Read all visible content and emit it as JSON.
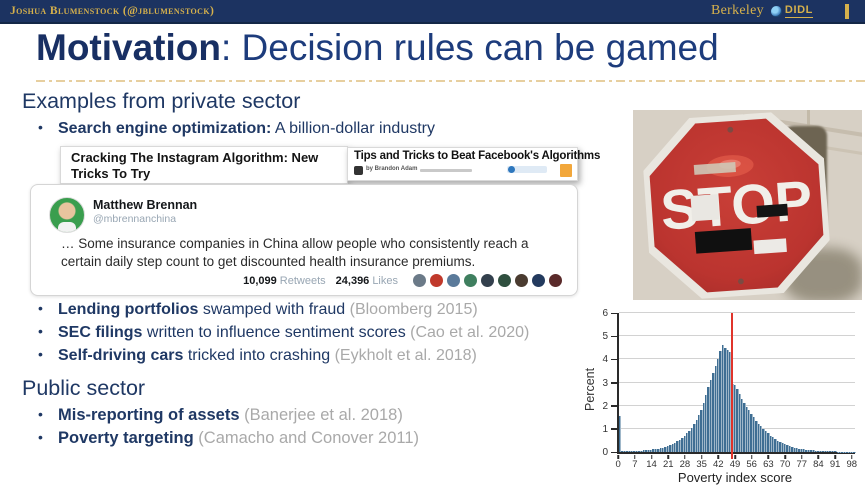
{
  "header": {
    "author": "Joshua Blumenstock (@jblumenstock)",
    "brand_berkeley": "Berkeley",
    "brand_didl": "DIDL",
    "globe_icon": "globe",
    "colors": {
      "bar_bg": "#1c3361",
      "gold": "#d6b14c"
    }
  },
  "title": {
    "bold": "Motivation",
    "rest": ": Decision rules can be gamed"
  },
  "private_sector": {
    "heading": "Examples from private sector",
    "seo_bold": "Search engine optimization:",
    "seo_rest": " A billion-dollar industry",
    "bullets": [
      {
        "bold": "Lending portfolios",
        "text": " swamped with fraud ",
        "cite": "(Bloomberg 2015)"
      },
      {
        "bold": "SEC filings",
        "text": " written to influence sentiment scores ",
        "cite": "(Cao et al. 2020)"
      },
      {
        "bold": "Self-driving cars",
        "text": " tricked into crashing ",
        "cite": "(Eykholt et al. 2018)"
      }
    ]
  },
  "headlines": {
    "instagram": "Cracking The Instagram Algorithm: New Tricks To Try",
    "facebook": "Tips and Tricks to Beat Facebook's Algorithms",
    "facebook_byline": "by Brandon Adam"
  },
  "tweet": {
    "name": "Matthew Brennan",
    "handle": "@mbrennanchina",
    "text": "… Some insurance companies in China allow people who consistently reach a certain daily step count to get discounted health insurance premiums.",
    "retweets": "10,099",
    "retweets_label": "Retweets",
    "likes": "24,396",
    "likes_label": "Likes",
    "avatar_colors": [
      "#6b7a88",
      "#c0392b",
      "#5a7a9a",
      "#3f7f5f",
      "#33404d",
      "#2f4f3f",
      "#4a3b30",
      "#233a5e",
      "#5a2a2a"
    ]
  },
  "public_sector": {
    "heading": "Public sector",
    "bullets": [
      {
        "bold": "Mis-reporting of assets ",
        "cite": "(Banerjee et al. 2018)"
      },
      {
        "bold": "Poverty targeting ",
        "cite": "(Camacho and Conover 2011)"
      }
    ]
  },
  "stop_sign": {
    "text": "STOP",
    "sign_color": "#bf3733"
  },
  "chart_data": {
    "type": "bar",
    "title": "",
    "xlabel": "Poverty index score",
    "ylabel": "Percent",
    "x_ticks": [
      0,
      7,
      14,
      21,
      28,
      35,
      42,
      49,
      56,
      63,
      70,
      77,
      84,
      91,
      98
    ],
    "y_ticks": [
      0,
      1,
      2,
      3,
      4,
      5,
      6
    ],
    "xlim": [
      0,
      99
    ],
    "ylim": [
      0,
      6
    ],
    "grid": true,
    "legend": false,
    "bar_color": "#3f6e93",
    "threshold_line_x": 47,
    "threshold_color": "#e0342b",
    "values": [
      1.55,
      0.05,
      0.03,
      0.03,
      0.04,
      0.04,
      0.05,
      0.05,
      0.06,
      0.06,
      0.07,
      0.08,
      0.09,
      0.1,
      0.11,
      0.12,
      0.14,
      0.16,
      0.19,
      0.22,
      0.26,
      0.3,
      0.35,
      0.4,
      0.46,
      0.52,
      0.6,
      0.7,
      0.8,
      0.92,
      1.05,
      1.2,
      1.38,
      1.58,
      1.8,
      2.1,
      2.45,
      2.8,
      3.1,
      3.4,
      3.7,
      4.0,
      4.35,
      4.6,
      4.5,
      4.4,
      4.3,
      2.95,
      2.9,
      2.7,
      2.5,
      2.3,
      2.12,
      1.95,
      1.8,
      1.65,
      1.5,
      1.36,
      1.23,
      1.11,
      1.0,
      0.9,
      0.8,
      0.71,
      0.63,
      0.56,
      0.49,
      0.43,
      0.38,
      0.33,
      0.29,
      0.25,
      0.22,
      0.19,
      0.17,
      0.15,
      0.13,
      0.11,
      0.1,
      0.09,
      0.08,
      0.07,
      0.06,
      0.06,
      0.05,
      0.05,
      0.04,
      0.04,
      0.03,
      0.03,
      0.03,
      0.02,
      0.02,
      0.02,
      0.02,
      0.01,
      0.01,
      0.01,
      0.01
    ]
  }
}
